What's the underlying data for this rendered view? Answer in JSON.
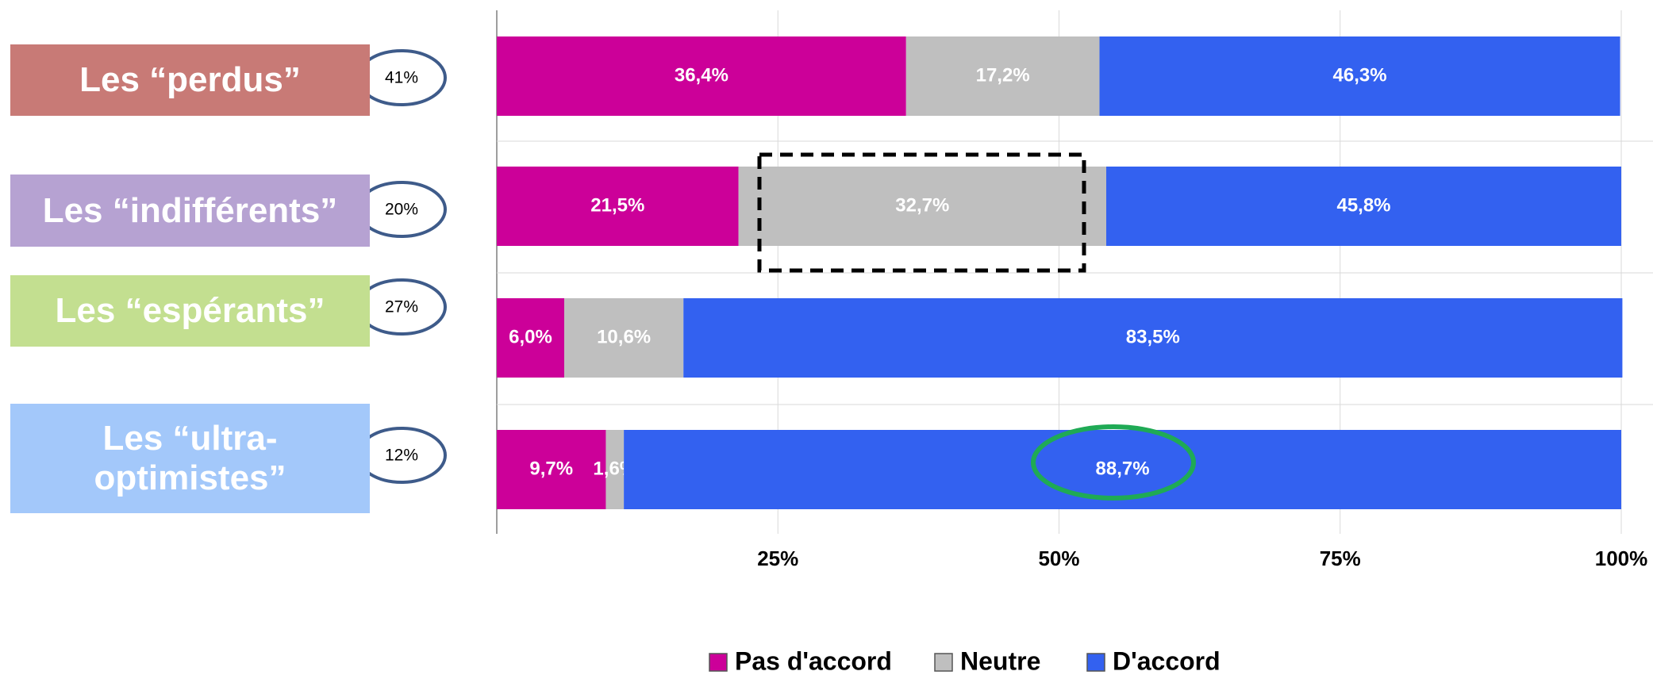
{
  "chart_data": {
    "type": "stacked_barh",
    "categories": [
      "Les “perdus”",
      "Les “indifférents”",
      "Les “espérants”",
      "Les “ultra-optimistes”"
    ],
    "category_colors": [
      "#c87a76",
      "#b6a2d2",
      "#c3df90",
      "#a3c8fa"
    ],
    "group_shares": [
      41,
      20,
      27,
      12
    ],
    "group_share_labels": [
      "41%",
      "20%",
      "27%",
      "12%"
    ],
    "series": [
      {
        "name": "Pas d'accord",
        "color": "#cc0099",
        "values": [
          36.4,
          21.5,
          6.0,
          9.7
        ],
        "value_labels": [
          "36,4%",
          "21,5%",
          "6,0%",
          "9,7%"
        ]
      },
      {
        "name": "Neutre",
        "color": "#bfbfbf",
        "values": [
          17.2,
          32.7,
          10.6,
          1.6
        ],
        "value_labels": [
          "17,2%",
          "32,7%",
          "10,6%",
          "1,6%"
        ]
      },
      {
        "name": "D'accord",
        "color": "#3361f0",
        "values": [
          46.3,
          45.8,
          83.5,
          88.7
        ],
        "value_labels": [
          "46,3%",
          "45,8%",
          "83,5%",
          "88,7%"
        ]
      }
    ],
    "xlim": [
      0,
      100
    ],
    "xticks": [
      {
        "value": 25,
        "label": "25%"
      },
      {
        "value": 50,
        "label": "50%"
      },
      {
        "value": 75,
        "label": "75%"
      },
      {
        "value": 100,
        "label": "100%"
      }
    ],
    "grid": true
  }
}
